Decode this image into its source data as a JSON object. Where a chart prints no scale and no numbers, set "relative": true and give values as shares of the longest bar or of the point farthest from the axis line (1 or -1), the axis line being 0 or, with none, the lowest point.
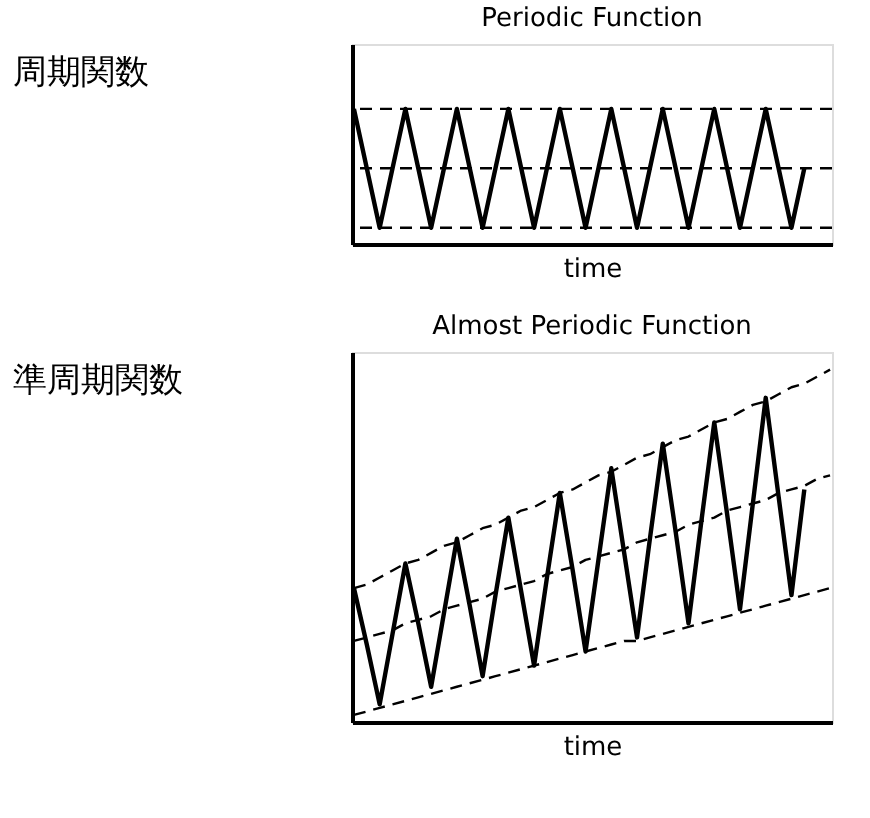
{
  "chart_data": [
    {
      "type": "line",
      "title": "Periodic Function",
      "xlabel": "time",
      "ylabel": "周期関数",
      "relative": true,
      "tick_labels": false,
      "grid": false,
      "categories": [
        null,
        null,
        null,
        null,
        null,
        null,
        null,
        null,
        null,
        null,
        null,
        null,
        null,
        null,
        null,
        null,
        null,
        null,
        null,
        null,
        null,
        null,
        null,
        null,
        null,
        null,
        null,
        null,
        null,
        null,
        null,
        null,
        null,
        null,
        null,
        null,
        null,
        null
      ],
      "series": [
        {
          "color": "#000000",
          "line_style": "solid",
          "values": [
            1,
            0.56,
            0.12,
            0.56,
            1,
            0.56,
            0.12,
            0.56,
            1,
            0.56,
            0.12,
            0.56,
            1,
            0.56,
            0.12,
            0.56,
            1,
            0.56,
            0.12,
            0.56,
            1,
            0.56,
            0.12,
            0.56,
            1,
            0.56,
            0.12,
            0.56,
            1,
            0.56,
            0.12,
            0.56,
            1,
            0.56,
            0.12,
            0.56,
            null,
            null
          ]
        }
      ],
      "ref_lines": [
        {
          "axis": "y",
          "value": 1,
          "color": "#000000",
          "line_style": "dashed"
        },
        {
          "axis": "y",
          "value": 0.56,
          "color": "#000000",
          "line_style": "dashed"
        },
        {
          "axis": "y",
          "value": 0.12,
          "color": "#000000",
          "line_style": "dashed"
        }
      ]
    },
    {
      "type": "line",
      "title": "Almost Periodic Function",
      "xlabel": "time",
      "ylabel": "準周期関数",
      "relative": true,
      "tick_labels": false,
      "grid": false,
      "categories": [
        null,
        null,
        null,
        null,
        null,
        null,
        null,
        null,
        null,
        null,
        null,
        null,
        null,
        null,
        null,
        null,
        null,
        null,
        null,
        null,
        null,
        null,
        null,
        null,
        null,
        null,
        null,
        null,
        null,
        null,
        null,
        null,
        null,
        null,
        null,
        null,
        null,
        null
      ],
      "series": [
        {
          "color": "#000000",
          "line_style": "solid",
          "values": [
            0.38,
            0.22,
            0.05,
            0.25,
            0.45,
            0.28,
            0.1,
            0.31,
            0.52,
            0.33,
            0.13,
            0.36,
            0.58,
            0.37,
            0.16,
            0.41,
            0.65,
            0.43,
            0.2,
            0.46,
            0.72,
            0.48,
            0.24,
            0.52,
            0.79,
            0.54,
            0.28,
            0.57,
            0.85,
            0.59,
            0.32,
            0.62,
            0.92,
            0.64,
            0.36,
            0.66,
            null,
            null
          ]
        },
        {
          "color": "#000000",
          "line_style": "dashed",
          "values": [
            0.38,
            0.39,
            0.41,
            0.43,
            0.45,
            0.46,
            0.48,
            0.5,
            0.51,
            0.53,
            0.55,
            0.56,
            0.58,
            0.6,
            0.61,
            0.63,
            0.65,
            0.66,
            0.68,
            0.7,
            0.71,
            0.73,
            0.75,
            0.76,
            0.78,
            0.8,
            0.81,
            0.83,
            0.85,
            0.86,
            0.88,
            0.9,
            0.91,
            0.93,
            0.95,
            0.96,
            0.98,
            1.0
          ]
        },
        {
          "color": "#000000",
          "line_style": "dashed",
          "values": [
            0.23,
            0.24,
            0.25,
            0.26,
            0.28,
            0.29,
            0.3,
            0.32,
            0.33,
            0.34,
            0.35,
            0.37,
            0.38,
            0.39,
            0.4,
            0.42,
            0.43,
            0.44,
            0.46,
            0.47,
            0.48,
            0.49,
            0.51,
            0.52,
            0.53,
            0.54,
            0.56,
            0.57,
            0.58,
            0.6,
            0.61,
            0.62,
            0.63,
            0.65,
            0.66,
            0.67,
            0.69,
            0.7
          ]
        },
        {
          "color": "#000000",
          "line_style": "dashed",
          "values": [
            0.02,
            0.03,
            0.04,
            0.05,
            0.06,
            0.07,
            0.08,
            0.09,
            0.1,
            0.11,
            0.12,
            0.13,
            0.14,
            0.15,
            0.16,
            0.17,
            0.18,
            0.19,
            0.2,
            0.21,
            0.22,
            0.23,
            0.23,
            0.24,
            0.25,
            0.26,
            0.27,
            0.28,
            0.29,
            0.3,
            0.31,
            0.32,
            0.33,
            0.34,
            0.35,
            0.36,
            0.37,
            0.38
          ]
        }
      ]
    }
  ]
}
